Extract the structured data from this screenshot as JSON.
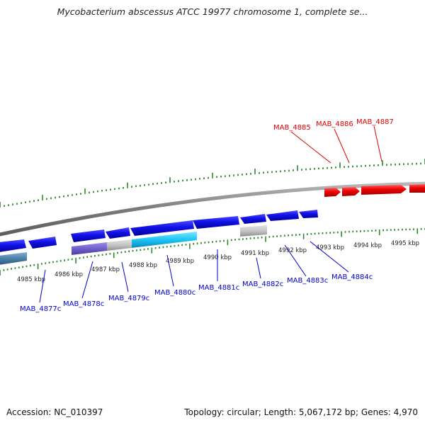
{
  "header": {
    "title": "Mycobacterium abscessus ATCC 19977 chromosome 1, complete se..."
  },
  "footer": {
    "accession": "Accession: NC_010397",
    "summary": "Topology: circular; Length: 5,067,172 bp; Genes: 4,970"
  },
  "map": {
    "tick_labels": [
      "4985 kbp",
      "4986 kbp",
      "4987 kbp",
      "4988 kbp",
      "4989 kbp",
      "4990 kbp",
      "4991 kbp",
      "4992 kbp",
      "4993 kbp",
      "4994 kbp",
      "4995 kbp"
    ],
    "plus_genes": [
      "MAB_4885",
      "MAB_4886",
      "MAB_4887"
    ],
    "minus_genes": [
      "MAB_4877c",
      "MAB_4878c",
      "MAB_4879c",
      "MAB_4880c",
      "MAB_4881c",
      "MAB_4882c",
      "MAB_4883c",
      "MAB_4884c"
    ],
    "colors": {
      "plus_strand": "#ee0000",
      "minus_strand": "#0000dd",
      "tick": "#2a8a2a",
      "backbone": "#8a8a8a"
    }
  }
}
